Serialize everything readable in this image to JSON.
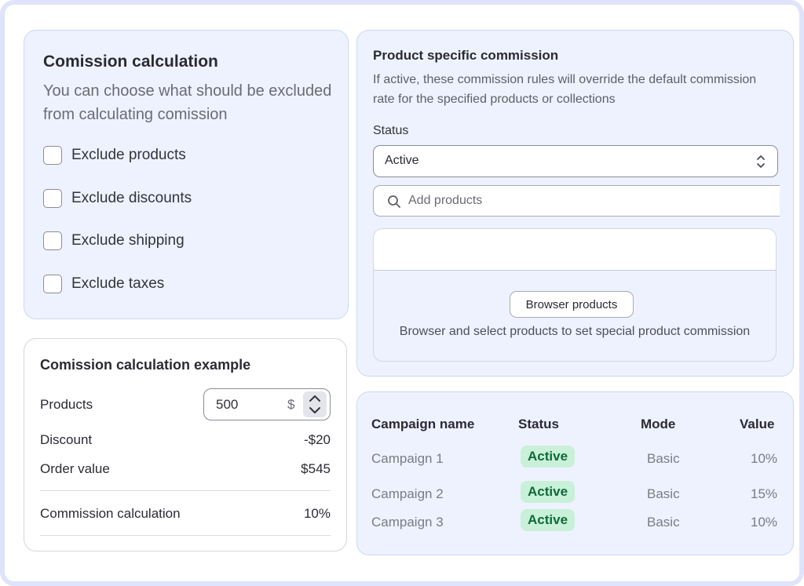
{
  "exclusions": {
    "title": "Comission calculation",
    "subtitle": "You can choose what should be excluded from calculating comission",
    "options": [
      {
        "label": "Exclude products",
        "checked": false
      },
      {
        "label": "Exclude discounts",
        "checked": false
      },
      {
        "label": "Exclude shipping",
        "checked": false
      },
      {
        "label": "Exclude taxes",
        "checked": false
      }
    ]
  },
  "example": {
    "title": "Comission calculation example",
    "products_label": "Products",
    "products_value": "500",
    "currency": "$",
    "discount_label": "Discount",
    "discount_value": "-$20",
    "order_label": "Order value",
    "order_value": "$545",
    "commission_label": "Commission calculation",
    "commission_value": "10%"
  },
  "product_commission": {
    "title": "Product specific commission",
    "description": "If active, these commission rules will override the default commission rate for the specified products or collections",
    "status_label": "Status",
    "status_value": "Active",
    "search_placeholder": "Add products",
    "browse_button": "Browser products",
    "empty_text": "Browser and select products to set special product commission"
  },
  "campaigns": {
    "headers": [
      "Campaign name",
      "Status",
      "Mode",
      "Value"
    ],
    "rows": [
      {
        "name": "Campaign 1",
        "status": "Active",
        "mode": "Basic",
        "value": "10%"
      },
      {
        "name": "Campaign 2",
        "status": "Active",
        "mode": "Basic",
        "value": "15%"
      },
      {
        "name": "Campaign 3",
        "status": "Active",
        "mode": "Basic",
        "value": "10%"
      }
    ]
  },
  "colors": {
    "card_blue": "#eef2fe",
    "badge_bg": "#c9f0d8",
    "badge_text": "#0f6a3a",
    "frame": "#dfe3fb"
  },
  "icons": {
    "select_chevron": "chevron-up-down-icon",
    "search": "search-icon",
    "stepper": "stepper-arrows-icon"
  }
}
